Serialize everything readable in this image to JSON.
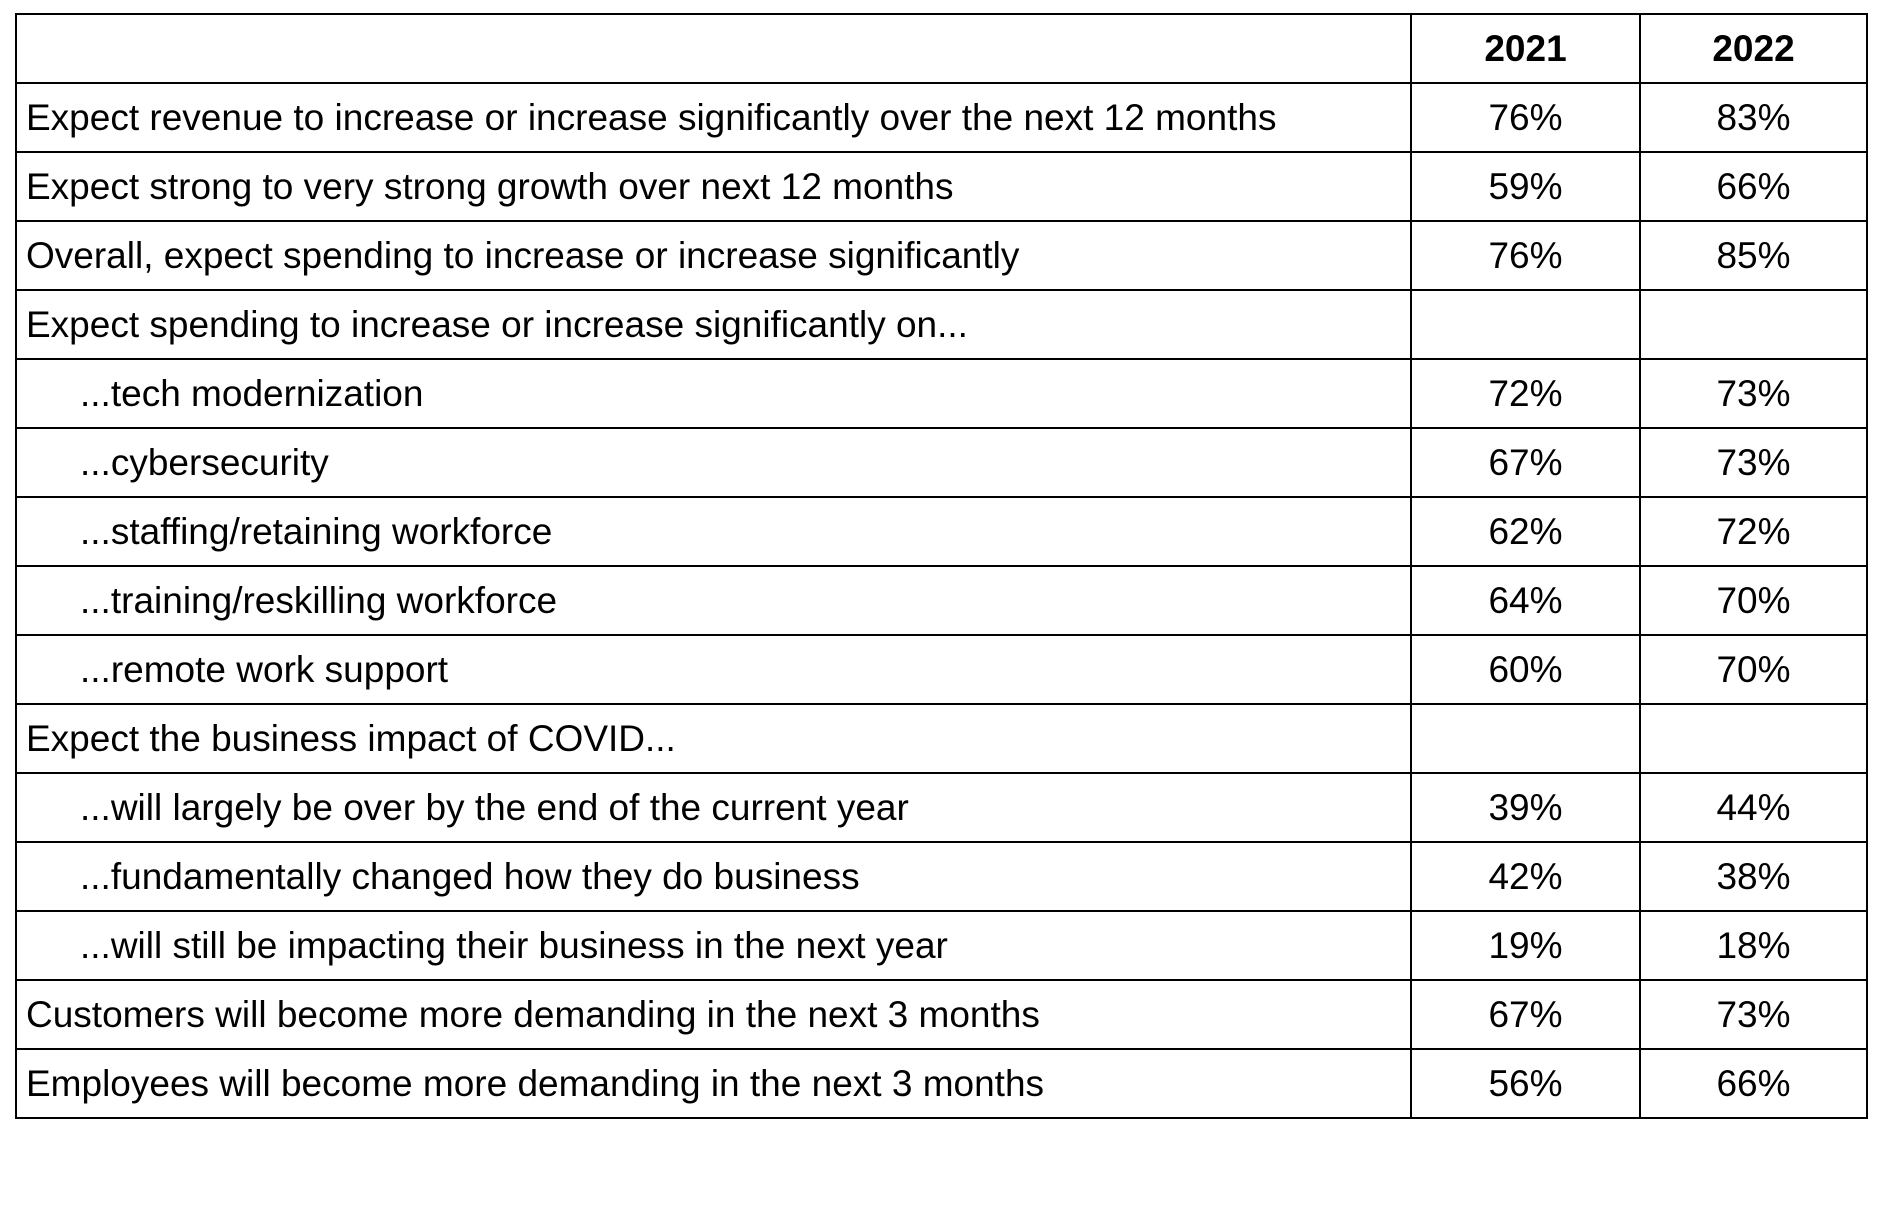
{
  "chart_data": {
    "type": "table",
    "columns": [
      "",
      "2021",
      "2022"
    ],
    "rows": [
      {
        "label": "Expect revenue to increase or increase significantly over the next 12 months",
        "indent": false,
        "v2021": "76%",
        "v2022": "83%"
      },
      {
        "label": "Expect strong to very strong growth over next 12 months",
        "indent": false,
        "v2021": "59%",
        "v2022": "66%"
      },
      {
        "label": "Overall, expect spending to increase or increase significantly",
        "indent": false,
        "v2021": "76%",
        "v2022": "85%"
      },
      {
        "label": "Expect spending to increase or increase significantly on...",
        "indent": false,
        "v2021": "",
        "v2022": ""
      },
      {
        "label": "...tech modernization",
        "indent": true,
        "v2021": "72%",
        "v2022": "73%"
      },
      {
        "label": "...cybersecurity",
        "indent": true,
        "v2021": "67%",
        "v2022": "73%"
      },
      {
        "label": "...staffing/retaining workforce",
        "indent": true,
        "v2021": "62%",
        "v2022": "72%"
      },
      {
        "label": "...training/reskilling workforce",
        "indent": true,
        "v2021": "64%",
        "v2022": "70%"
      },
      {
        "label": "...remote work support",
        "indent": true,
        "v2021": "60%",
        "v2022": "70%"
      },
      {
        "label": "Expect the business impact of COVID...",
        "indent": false,
        "v2021": "",
        "v2022": ""
      },
      {
        "label": "...will largely be over by the end of the current year",
        "indent": true,
        "v2021": "39%",
        "v2022": "44%"
      },
      {
        "label": "...fundamentally changed how they do business",
        "indent": true,
        "v2021": "42%",
        "v2022": "38%"
      },
      {
        "label": "...will still be impacting their business in the next year",
        "indent": true,
        "v2021": "19%",
        "v2022": "18%"
      },
      {
        "label": "Customers will become more demanding in the next 3 months",
        "indent": false,
        "v2021": "67%",
        "v2022": "73%"
      },
      {
        "label": "Employees will become more demanding in the next 3 months",
        "indent": false,
        "v2021": "56%",
        "v2022": "66%"
      }
    ]
  },
  "colors": {
    "border": "#000000",
    "text": "#000000",
    "background": "#ffffff"
  }
}
